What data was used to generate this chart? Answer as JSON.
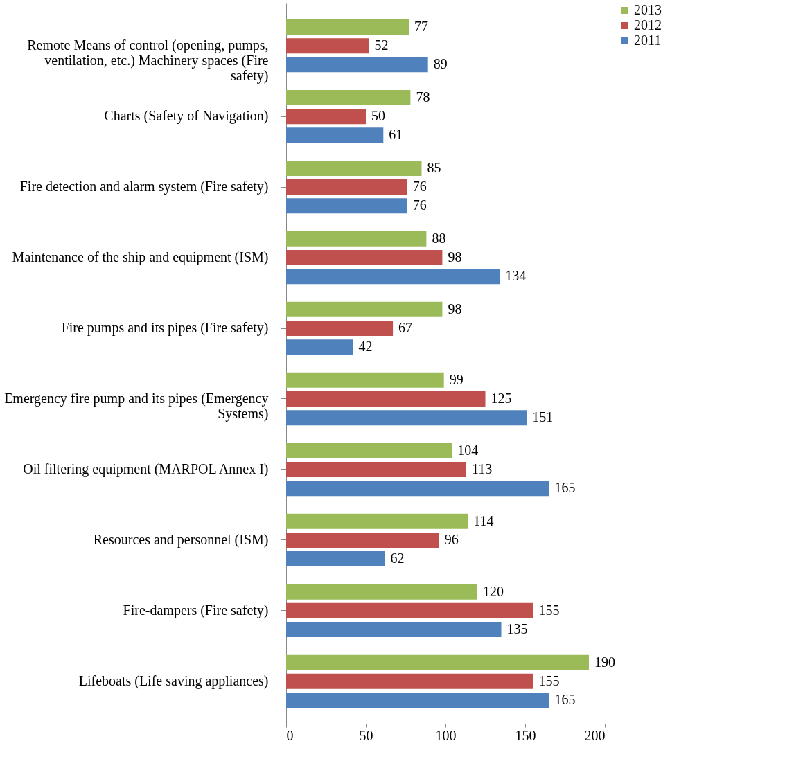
{
  "chart_data": {
    "type": "bar",
    "orientation": "horizontal",
    "categories": [
      "Remote Means of control (opening, pumps, ventilation, etc.) Machinery spaces (Fire safety)",
      "Charts (Safety of Navigation)",
      "Fire detection and alarm system (Fire safety)",
      "Maintenance of the ship and equipment (ISM)",
      "Fire pumps and its pipes (Fire safety)",
      "Emergency fire pump and its pipes (Emergency Systems)",
      "Oil filtering equipment (MARPOL Annex I)",
      "Resources and personnel (ISM)",
      "Fire-dampers (Fire safety)",
      "Lifeboats (Life saving appliances)"
    ],
    "series": [
      {
        "name": "2013",
        "color": "#9bbb59",
        "values": [
          77,
          78,
          85,
          88,
          98,
          99,
          104,
          114,
          120,
          190
        ]
      },
      {
        "name": "2012",
        "color": "#c0504d",
        "values": [
          52,
          50,
          76,
          98,
          67,
          125,
          113,
          96,
          155,
          155
        ]
      },
      {
        "name": "2011",
        "color": "#4f81bd",
        "values": [
          89,
          61,
          76,
          134,
          42,
          151,
          165,
          62,
          135,
          165
        ]
      }
    ],
    "xlim": [
      0,
      200
    ],
    "xticks": [
      0,
      50,
      100,
      150,
      200
    ],
    "data_labels": true,
    "legend": "right"
  }
}
